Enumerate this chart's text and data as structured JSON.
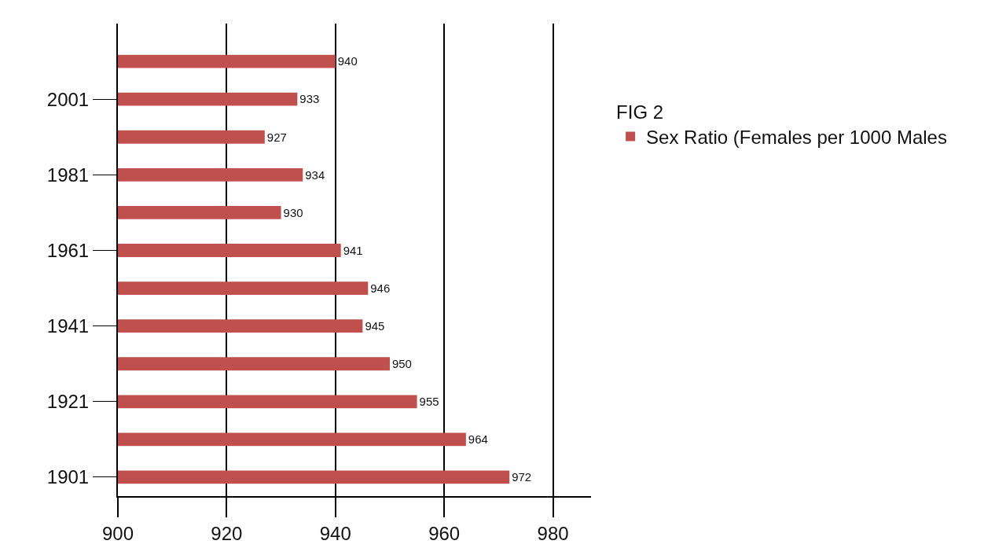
{
  "chart_data": {
    "type": "bar",
    "orientation": "horizontal",
    "legend_title": "FIG 2",
    "categories": [
      null,
      "2001",
      null,
      "1981",
      null,
      "1961",
      null,
      "1941",
      null,
      "1921",
      null,
      "1901"
    ],
    "series": [
      {
        "name": "Sex Ratio (Females per 1000 Males",
        "color": "#c0504d",
        "values": [
          940,
          933,
          927,
          934,
          930,
          941,
          946,
          945,
          950,
          955,
          964,
          972
        ]
      }
    ],
    "xlim": [
      900,
      987
    ],
    "xticks": [
      900,
      920,
      940,
      960,
      980
    ],
    "grid": "x",
    "legend": "right",
    "data_labels": true
  }
}
